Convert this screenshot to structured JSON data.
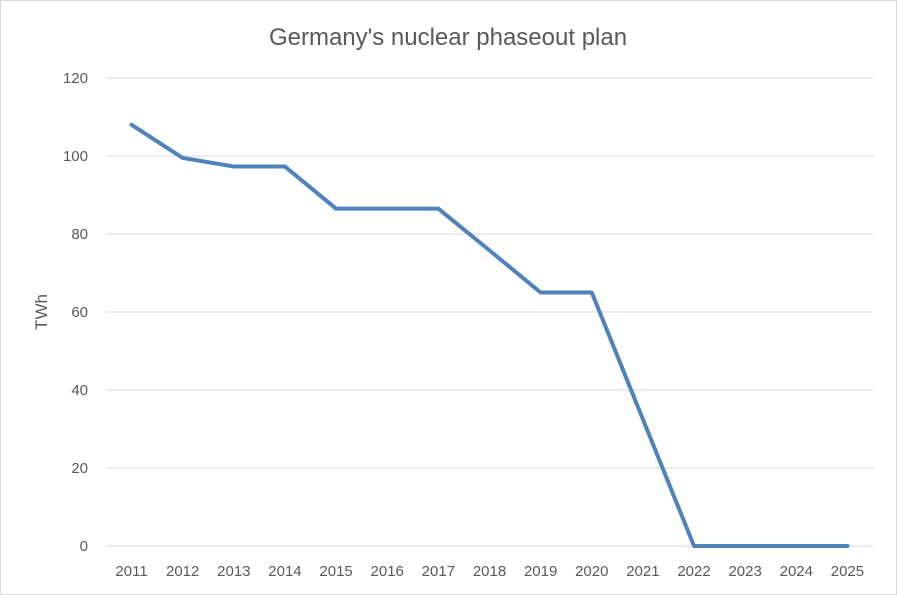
{
  "chart_data": {
    "type": "line",
    "title": "Germany's nuclear phaseout plan",
    "xlabel": "",
    "ylabel": "TWh",
    "categories": [
      "2011",
      "2012",
      "2013",
      "2014",
      "2015",
      "2016",
      "2017",
      "2018",
      "2019",
      "2020",
      "2021",
      "2022",
      "2023",
      "2024",
      "2025"
    ],
    "series": [
      {
        "values": [
          108,
          99.5,
          97.3,
          97.3,
          86.5,
          86.5,
          86.5,
          75.8,
          65,
          65,
          32.5,
          0,
          0,
          0,
          0
        ],
        "color": "#4f81bd"
      }
    ],
    "ylim": [
      0,
      120
    ],
    "yticks": [
      0,
      20,
      40,
      60,
      80,
      100,
      120
    ],
    "grid": true,
    "legend": "none"
  }
}
